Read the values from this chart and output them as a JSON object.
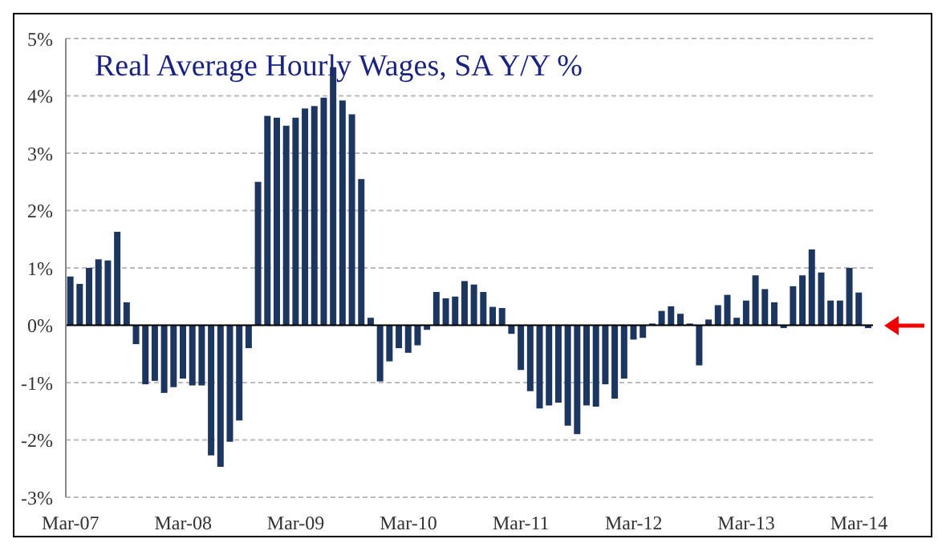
{
  "chart_data": {
    "type": "bar",
    "title": "Real Average Hourly Wages, SA Y/Y %",
    "categories": [
      "Mar-07",
      null,
      null,
      null,
      null,
      null,
      null,
      null,
      null,
      null,
      null,
      null,
      "Mar-08",
      null,
      null,
      null,
      null,
      null,
      null,
      null,
      null,
      null,
      null,
      null,
      "Mar-09",
      null,
      null,
      null,
      null,
      null,
      null,
      null,
      null,
      null,
      null,
      null,
      "Mar-10",
      null,
      null,
      null,
      null,
      null,
      null,
      null,
      null,
      null,
      null,
      null,
      "Mar-11",
      null,
      null,
      null,
      null,
      null,
      null,
      null,
      null,
      null,
      null,
      null,
      "Mar-12",
      null,
      null,
      null,
      null,
      null,
      null,
      null,
      null,
      null,
      null,
      null,
      "Mar-13",
      null,
      null,
      null,
      null,
      null,
      null,
      null,
      null,
      null,
      null,
      null,
      "Mar-14",
      null
    ],
    "values": [
      0.85,
      0.72,
      1.0,
      1.15,
      1.13,
      1.63,
      0.4,
      -0.33,
      -1.03,
      -0.97,
      -1.18,
      -1.08,
      -0.93,
      -1.05,
      -1.05,
      -2.27,
      -2.47,
      -2.03,
      -1.66,
      -0.4,
      2.5,
      3.65,
      3.62,
      3.48,
      3.62,
      3.78,
      3.82,
      3.97,
      4.5,
      3.92,
      3.68,
      2.55,
      0.13,
      -0.98,
      -0.63,
      -0.4,
      -0.48,
      -0.35,
      -0.08,
      0.58,
      0.47,
      0.5,
      0.77,
      0.71,
      0.58,
      0.32,
      0.3,
      -0.15,
      -0.78,
      -1.15,
      -1.45,
      -1.4,
      -1.35,
      -1.75,
      -1.9,
      -1.4,
      -1.42,
      -1.03,
      -1.28,
      -0.93,
      -0.25,
      -0.22,
      0.03,
      0.25,
      0.33,
      0.2,
      0.03,
      -0.7,
      0.1,
      0.35,
      0.53,
      0.13,
      0.43,
      0.87,
      0.63,
      0.4,
      -0.05,
      0.68,
      0.87,
      1.32,
      0.92,
      0.43,
      0.43,
      1.0,
      0.57,
      -0.05
    ],
    "color": "#1c3660",
    "ylim": [
      -3,
      5
    ],
    "yticks": [
      {
        "value": -3,
        "label": "-3%"
      },
      {
        "value": -2,
        "label": "-2%"
      },
      {
        "value": -1,
        "label": "-1%"
      },
      {
        "value": 0,
        "label": "0%"
      },
      {
        "value": 1,
        "label": "1%"
      },
      {
        "value": 2,
        "label": "2%"
      },
      {
        "value": 3,
        "label": "3%"
      },
      {
        "value": 4,
        "label": "4%"
      },
      {
        "value": 5,
        "label": "5%"
      }
    ],
    "grid": "y"
  }
}
